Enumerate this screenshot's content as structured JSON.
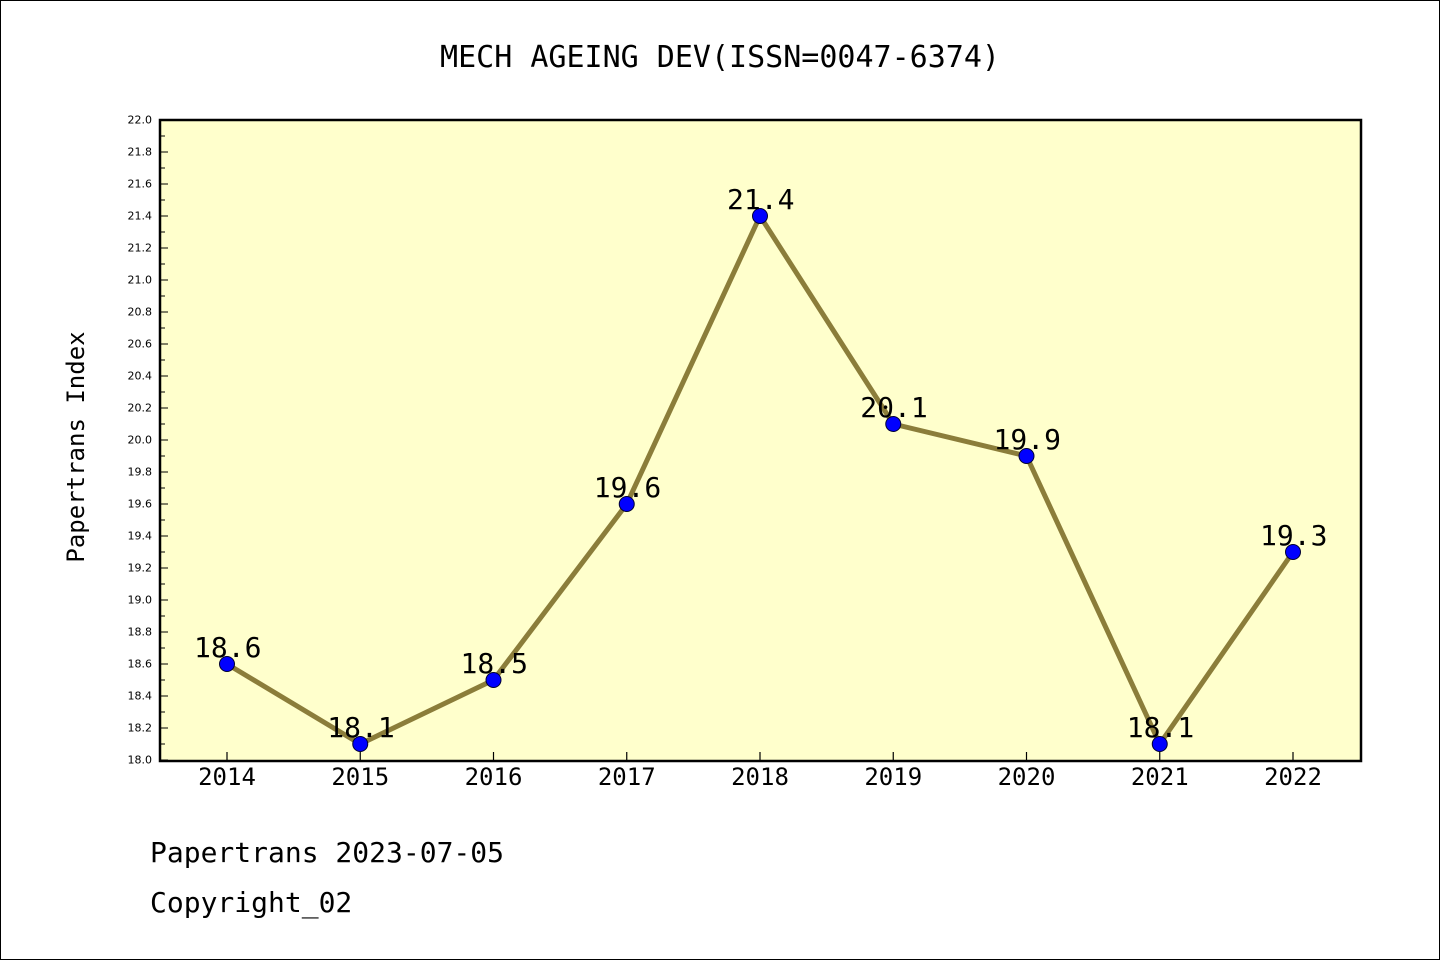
{
  "chart_data": {
    "type": "line",
    "title": "MECH AGEING DEV(ISSN=0047-6374)",
    "xlabel": "",
    "ylabel": "Papertrans Index",
    "categories": [
      "2014",
      "2015",
      "2016",
      "2017",
      "2018",
      "2019",
      "2020",
      "2021",
      "2022"
    ],
    "series": [
      {
        "values": [
          18.6,
          18.1,
          18.5,
          19.6,
          21.4,
          20.1,
          19.9,
          18.1,
          19.3
        ],
        "labels": [
          "18.6",
          "18.1",
          "18.5",
          "19.6",
          "21.4",
          "20.1",
          "19.9",
          "18.1",
          "19.3"
        ]
      }
    ],
    "ylim": [
      18.0,
      22.0
    ],
    "yticks": [
      "18.0",
      "18.2",
      "18.4",
      "18.6",
      "18.8",
      "19.0",
      "19.2",
      "19.4",
      "19.6",
      "19.8",
      "20.0",
      "20.2",
      "20.4",
      "20.6",
      "20.8",
      "21.0",
      "21.2",
      "21.4",
      "21.6",
      "21.8",
      "22.0"
    ],
    "grid": false,
    "legend": "none",
    "colors": {
      "plot_background": "#ffffcc",
      "line": "#8b7d3a",
      "marker": "#0000ff"
    }
  },
  "footer": {
    "line1": "Papertrans 2023-07-05",
    "line2": "Copyright_02"
  }
}
